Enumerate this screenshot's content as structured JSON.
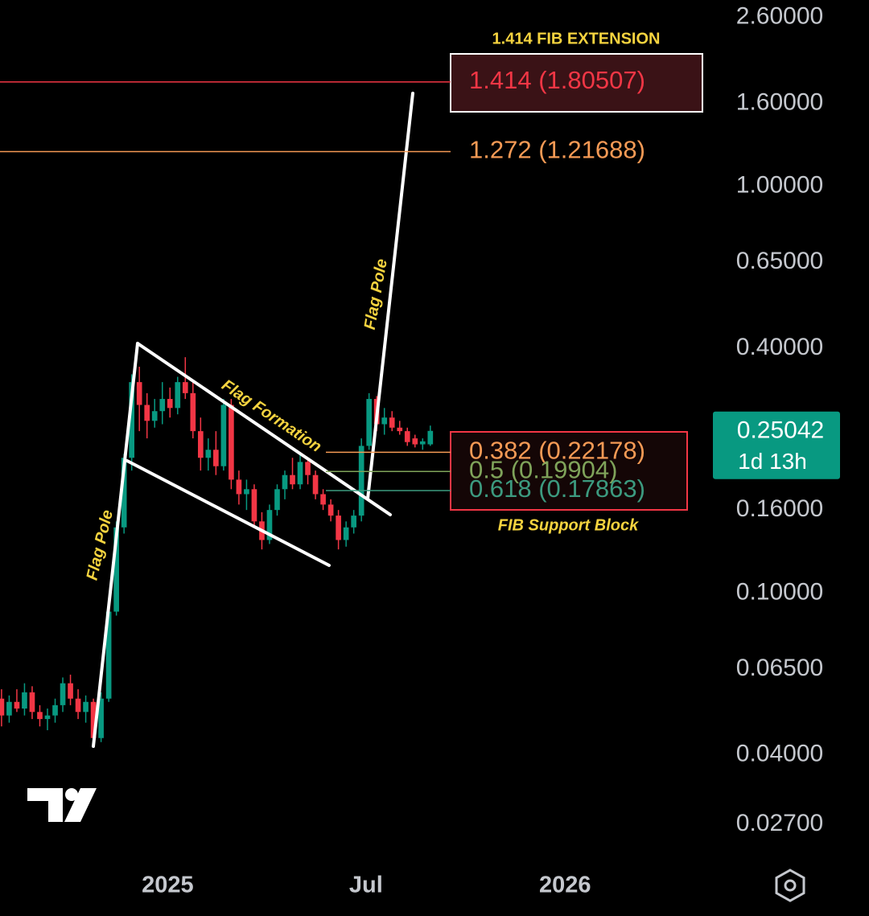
{
  "chart_data": {
    "type": "candlestick",
    "log_scale": true,
    "categories": [
      null,
      null,
      null,
      null,
      null,
      null,
      null,
      null,
      null,
      null,
      null,
      null,
      null,
      null,
      null,
      null,
      null,
      null,
      null,
      null,
      null,
      null,
      null,
      null,
      null,
      null,
      null,
      null,
      null,
      null,
      null,
      null,
      null,
      null,
      null,
      null,
      null,
      null,
      null,
      null,
      null,
      null,
      null,
      null,
      null,
      null,
      null,
      null,
      null,
      null,
      null,
      null,
      null,
      null,
      null,
      null,
      null
    ],
    "open": [
      0.055,
      0.05,
      0.054,
      0.052,
      0.057,
      0.051,
      0.049,
      0.05,
      0.053,
      0.06,
      0.055,
      0.051,
      0.054,
      0.044,
      0.055,
      0.09,
      0.145,
      0.215,
      0.33,
      0.29,
      0.265,
      0.28,
      0.3,
      0.285,
      0.33,
      0.31,
      0.25,
      0.215,
      0.225,
      0.205,
      0.29,
      0.19,
      0.175,
      0.18,
      0.15,
      0.135,
      0.16,
      0.18,
      0.195,
      0.185,
      0.21,
      0.195,
      0.175,
      0.165,
      0.155,
      0.135,
      0.145,
      0.155,
      0.23,
      0.3,
      0.26,
      0.27,
      0.255,
      0.25,
      0.24,
      0.232,
      0.232
    ],
    "high": [
      0.058,
      0.056,
      0.058,
      0.06,
      0.059,
      0.053,
      0.052,
      0.055,
      0.062,
      0.063,
      0.058,
      0.056,
      0.055,
      0.057,
      0.092,
      0.15,
      0.22,
      0.345,
      0.36,
      0.31,
      0.3,
      0.33,
      0.32,
      0.34,
      0.38,
      0.33,
      0.27,
      0.24,
      0.25,
      0.3,
      0.3,
      0.2,
      0.19,
      0.185,
      0.158,
      0.165,
      0.185,
      0.2,
      0.215,
      0.22,
      0.215,
      0.2,
      0.18,
      0.17,
      0.16,
      0.15,
      0.16,
      0.24,
      0.31,
      0.305,
      0.285,
      0.28,
      0.265,
      0.255,
      0.245,
      0.24,
      0.258
    ],
    "low": [
      0.047,
      0.048,
      0.051,
      0.05,
      0.049,
      0.047,
      0.046,
      0.048,
      0.051,
      0.053,
      0.049,
      0.048,
      0.042,
      0.043,
      0.054,
      0.088,
      0.14,
      0.2,
      0.25,
      0.24,
      0.255,
      0.26,
      0.27,
      0.275,
      0.3,
      0.24,
      0.2,
      0.2,
      0.195,
      0.2,
      0.18,
      0.165,
      0.16,
      0.145,
      0.128,
      0.132,
      0.155,
      0.17,
      0.18,
      0.18,
      0.185,
      0.17,
      0.16,
      0.15,
      0.128,
      0.13,
      0.14,
      0.15,
      0.225,
      0.25,
      0.245,
      0.25,
      0.245,
      0.23,
      0.228,
      0.225,
      0.23
    ],
    "close": [
      0.05,
      0.054,
      0.052,
      0.057,
      0.051,
      0.049,
      0.05,
      0.053,
      0.06,
      0.055,
      0.051,
      0.054,
      0.044,
      0.055,
      0.09,
      0.145,
      0.215,
      0.33,
      0.29,
      0.265,
      0.28,
      0.3,
      0.285,
      0.33,
      0.31,
      0.25,
      0.215,
      0.225,
      0.205,
      0.29,
      0.19,
      0.175,
      0.18,
      0.15,
      0.135,
      0.16,
      0.18,
      0.195,
      0.185,
      0.21,
      0.195,
      0.175,
      0.165,
      0.155,
      0.135,
      0.145,
      0.155,
      0.23,
      0.3,
      0.26,
      0.27,
      0.255,
      0.25,
      0.235,
      0.232,
      0.236,
      0.25042
    ],
    "up_color": "#089981",
    "down_color": "#f23645",
    "countdown": "1d 13h",
    "xlim": [
      -0.2,
      92.8
    ],
    "xticks": [
      {
        "value": 21.7,
        "label": "2025"
      },
      {
        "value": 47.6,
        "label": "Jul"
      },
      {
        "value": 73.6,
        "label": "2026"
      }
    ],
    "ylim": [
      0.022,
      2.87
    ],
    "yticks": [
      {
        "value": 2.6,
        "label": "2.60000"
      },
      {
        "value": 1.6,
        "label": "1.60000"
      },
      {
        "value": 1,
        "label": "1.00000"
      },
      {
        "value": 0.65,
        "label": "0.65000"
      },
      {
        "value": 0.4,
        "label": "0.40000"
      },
      {
        "value": 0.16,
        "label": "0.16000"
      },
      {
        "value": 0.1,
        "label": "0.10000"
      },
      {
        "value": 0.065,
        "label": "0.06500"
      },
      {
        "value": 0.04,
        "label": "0.04000"
      },
      {
        "value": 0.027,
        "label": "0.02700"
      }
    ],
    "fib_levels": [
      {
        "label": "1.414 (1.80507)",
        "value": 1.80507,
        "color": "#f23645"
      },
      {
        "label": "1.272 (1.21688)",
        "value": 1.21688,
        "color": "#f59a55"
      },
      {
        "label": "0.382 (0.22178)",
        "value": 0.22178,
        "color": "#f59a55"
      },
      {
        "label": "0.5 (0.19904)",
        "value": 0.19904,
        "color": "#7fa35a"
      },
      {
        "label": "0.618 (0.17863)",
        "value": 0.17863,
        "color": "#3c9a7f"
      }
    ],
    "annotations": [
      "1.414 FIB EXTENSION",
      "Flag Formation",
      "Flag Pole",
      "Flag Pole",
      "FIB Support Block"
    ]
  }
}
